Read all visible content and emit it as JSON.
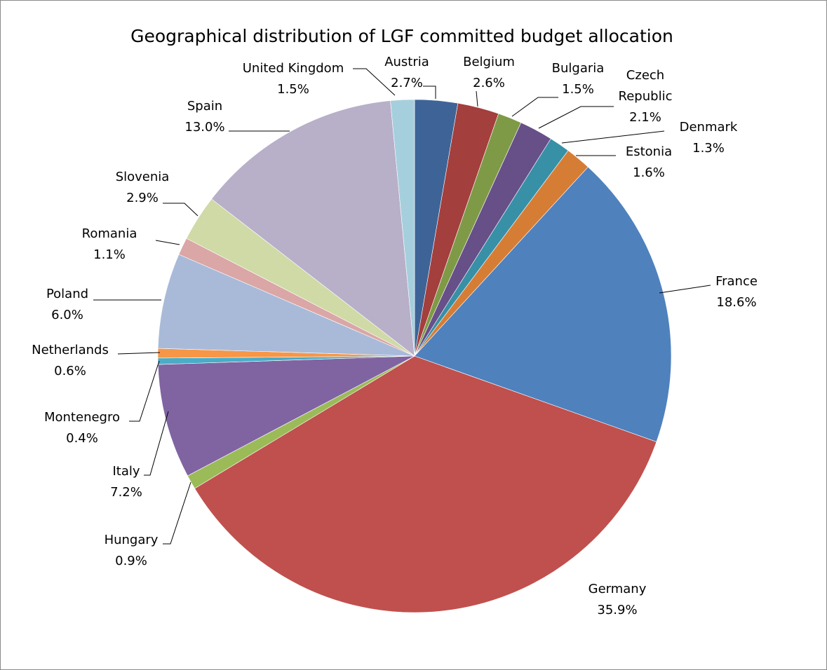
{
  "chart_data": {
    "type": "pie",
    "title": "Geographical distribution of LGF committed budget allocation",
    "legend": "none",
    "slices": [
      {
        "name": "Austria",
        "value": 2.7,
        "label": "2.7%",
        "color": "#3E6497"
      },
      {
        "name": "Belgium",
        "value": 2.6,
        "label": "2.6%",
        "color": "#A33F3D"
      },
      {
        "name": "Bulgaria",
        "value": 1.5,
        "label": "1.5%",
        "color": "#7F9A47"
      },
      {
        "name": "Czech Republic",
        "value": 2.1,
        "label": "2.1%",
        "color": "#674F88"
      },
      {
        "name": "Denmark",
        "value": 1.3,
        "label": "1.3%",
        "color": "#3890A7"
      },
      {
        "name": "Estonia",
        "value": 1.6,
        "label": "1.6%",
        "color": "#D67D35"
      },
      {
        "name": "France",
        "value": 18.6,
        "label": "18.6%",
        "color": "#4F81BD"
      },
      {
        "name": "Germany",
        "value": 35.9,
        "label": "35.9%",
        "color": "#C0504D"
      },
      {
        "name": "Hungary",
        "value": 0.9,
        "label": "0.9%",
        "color": "#9BBB59"
      },
      {
        "name": "Italy",
        "value": 7.2,
        "label": "7.2%",
        "color": "#8064A2"
      },
      {
        "name": "Montenegro",
        "value": 0.4,
        "label": "0.4%",
        "color": "#4BACC6"
      },
      {
        "name": "Netherlands",
        "value": 0.6,
        "label": "0.6%",
        "color": "#F79646"
      },
      {
        "name": "Poland",
        "value": 6.0,
        "label": "6.0%",
        "color": "#A9BAD9"
      },
      {
        "name": "Romania",
        "value": 1.1,
        "label": "1.1%",
        "color": "#DAA6A6"
      },
      {
        "name": "Slovenia",
        "value": 2.9,
        "label": "2.9%",
        "color": "#CFDAA6"
      },
      {
        "name": "Spain",
        "value": 13.0,
        "label": "13.0%",
        "color": "#B8AFC9"
      },
      {
        "name": "United Kingdom",
        "value": 1.5,
        "label": "1.5%",
        "color": "#A6CFDD"
      }
    ]
  }
}
